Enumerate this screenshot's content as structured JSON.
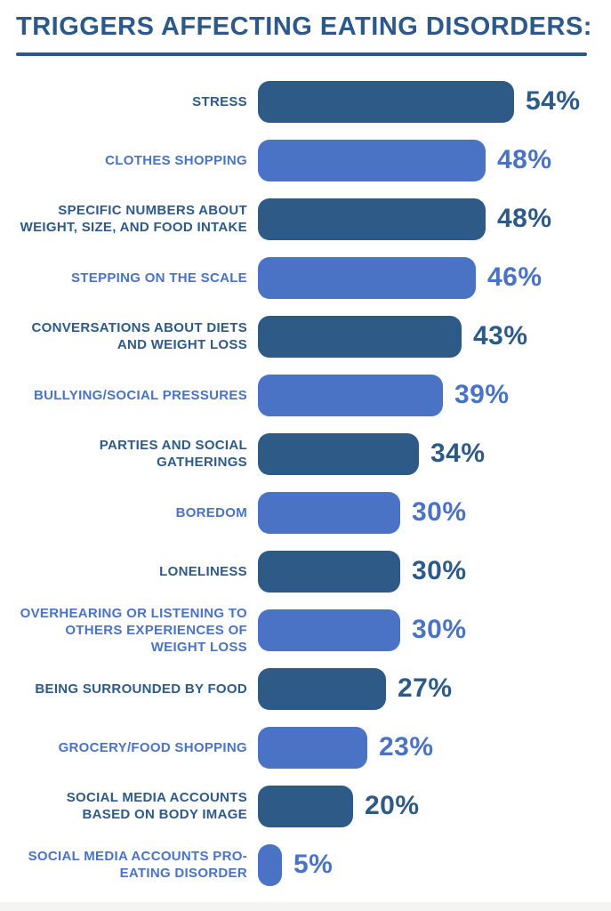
{
  "title": "TRIGGERS AFFECTING EATING DISORDERS:",
  "colors": {
    "dark": "#2E5A88",
    "light": "#4A73C5",
    "title": "#2B598C",
    "rule": "#2B598C",
    "footer_strip": "#F4F4F2"
  },
  "value_suffix": "%",
  "chart_data": {
    "type": "bar",
    "orientation": "horizontal",
    "title": "TRIGGERS AFFECTING EATING DISORDERS:",
    "xlabel": "",
    "ylabel": "",
    "unit": "%",
    "xlim": [
      0,
      60
    ],
    "grid": false,
    "legend": false,
    "value_labels_position": "right-of-bar",
    "bar_color_pattern": [
      "dark",
      "light"
    ],
    "categories": [
      "STRESS",
      "CLOTHES SHOPPING",
      "SPECIFIC NUMBERS ABOUT WEIGHT, SIZE, AND FOOD INTAKE",
      "STEPPING ON THE SCALE",
      "CONVERSATIONS ABOUT DIETS AND WEIGHT LOSS",
      "BULLYING/SOCIAL PRESSURES",
      "PARTIES AND SOCIAL GATHERINGS",
      "BOREDOM",
      "LONELINESS",
      "OVERHEARING OR LISTENING TO OTHERS EXPERIENCES OF WEIGHT LOSS",
      "BEING SURROUNDED BY FOOD",
      "GROCERY/FOOD SHOPPING",
      "SOCIAL MEDIA ACCOUNTS BASED ON BODY IMAGE",
      "SOCIAL MEDIA ACCOUNTS PRO-EATING DISORDER"
    ],
    "values": [
      54,
      48,
      48,
      46,
      43,
      39,
      34,
      30,
      30,
      30,
      27,
      23,
      20,
      5
    ],
    "value_labels": [
      "54%",
      "48%",
      "48%",
      "46%",
      "43%",
      "39%",
      "34%",
      "30%",
      "30%",
      "30%",
      "27%",
      "23%",
      "20%",
      "5%"
    ]
  }
}
